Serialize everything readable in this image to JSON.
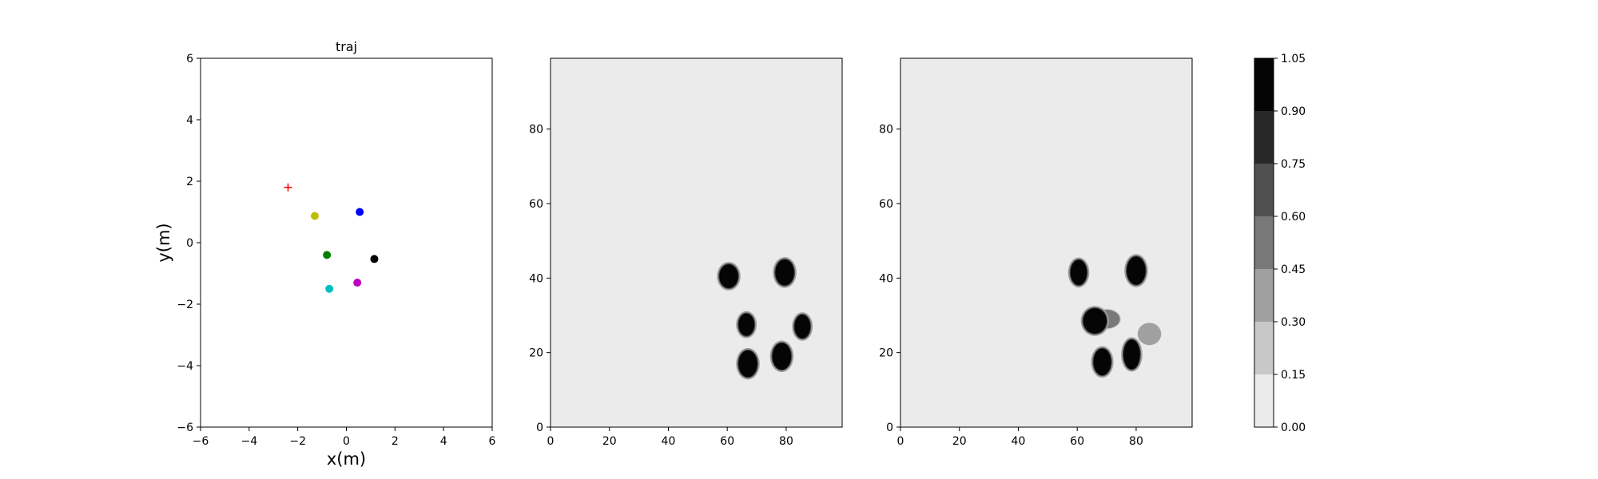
{
  "chart_data": [
    {
      "type": "scatter",
      "title": "traj",
      "xlabel": "x(m)",
      "ylabel": "y(m)",
      "xlim": [
        -6,
        6
      ],
      "ylim": [
        -6,
        6
      ],
      "xticks": [
        "−6",
        "−4",
        "−2",
        "0",
        "2",
        "4",
        "6"
      ],
      "yticks": [
        "−6",
        "−4",
        "−2",
        "0",
        "2",
        "4",
        "6"
      ],
      "xtick_values": [
        -6,
        -4,
        -2,
        0,
        2,
        4,
        6
      ],
      "ytick_values": [
        -6,
        -4,
        -2,
        0,
        2,
        4,
        6
      ],
      "target": {
        "x": -2.4,
        "y": 1.8,
        "marker": "+",
        "color": "#ff0000"
      },
      "points": [
        {
          "x": -1.3,
          "y": 0.87,
          "color": "#bfbf00"
        },
        {
          "x": 0.55,
          "y": 1.0,
          "color": "#0000ff"
        },
        {
          "x": -0.8,
          "y": -0.4,
          "color": "#008000"
        },
        {
          "x": 1.15,
          "y": -0.53,
          "color": "#000000"
        },
        {
          "x": 0.45,
          "y": -1.3,
          "color": "#bf00bf"
        },
        {
          "x": -0.7,
          "y": -1.5,
          "color": "#00bfbf"
        }
      ],
      "grid": false
    },
    {
      "type": "heatmap",
      "xlim": [
        0,
        99
      ],
      "ylim": [
        0,
        99
      ],
      "xticks": [
        "0",
        "20",
        "40",
        "60",
        "80"
      ],
      "yticks": [
        "0",
        "20",
        "40",
        "60",
        "80"
      ],
      "xtick_values": [
        0,
        20,
        40,
        60,
        80
      ],
      "ytick_values": [
        0,
        20,
        40,
        60,
        80
      ],
      "background": "#ebebeb",
      "blobs": [
        {
          "x": 60.5,
          "y": 40.5,
          "rx": 3.2,
          "ry": 3.2,
          "level": 1.0
        },
        {
          "x": 79.5,
          "y": 41.5,
          "rx": 3.2,
          "ry": 3.5,
          "level": 1.0
        },
        {
          "x": 66.5,
          "y": 27.5,
          "rx": 2.7,
          "ry": 3.0,
          "level": 1.0
        },
        {
          "x": 85.5,
          "y": 27.0,
          "rx": 2.7,
          "ry": 3.2,
          "level": 1.0
        },
        {
          "x": 67.0,
          "y": 17.0,
          "rx": 3.2,
          "ry": 3.6,
          "level": 1.0
        },
        {
          "x": 78.5,
          "y": 19.0,
          "rx": 3.2,
          "ry": 3.6,
          "level": 1.0
        }
      ]
    },
    {
      "type": "heatmap",
      "xlim": [
        0,
        99
      ],
      "ylim": [
        0,
        99
      ],
      "xticks": [
        "0",
        "20",
        "40",
        "60",
        "80"
      ],
      "yticks": [
        "0",
        "20",
        "40",
        "60",
        "80"
      ],
      "xtick_values": [
        0,
        20,
        40,
        60,
        80
      ],
      "ytick_values": [
        0,
        20,
        40,
        60,
        80
      ],
      "background": "#ebebeb",
      "blobs": [
        {
          "x": 60.5,
          "y": 41.5,
          "rx": 2.8,
          "ry": 3.4,
          "level": 1.0
        },
        {
          "x": 80.0,
          "y": 42.0,
          "rx": 3.2,
          "ry": 3.8,
          "level": 1.0
        },
        {
          "x": 66.0,
          "y": 28.5,
          "rx": 4.0,
          "ry": 3.4,
          "level": 1.0
        },
        {
          "x": 68.5,
          "y": 17.5,
          "rx": 3.0,
          "ry": 3.6,
          "level": 1.0
        },
        {
          "x": 78.5,
          "y": 19.5,
          "rx": 2.8,
          "ry": 4.0,
          "level": 1.0
        },
        {
          "x": 70.0,
          "y": 29.0,
          "rx": 4.5,
          "ry": 2.5,
          "level": 0.45
        },
        {
          "x": 84.5,
          "y": 25.0,
          "rx": 4.0,
          "ry": 3.0,
          "level": 0.3
        }
      ]
    },
    {
      "type": "colorbar",
      "ticks": [
        "0.00",
        "0.15",
        "0.30",
        "0.45",
        "0.60",
        "0.75",
        "0.90",
        "1.05"
      ],
      "tick_values": [
        0.0,
        0.15,
        0.3,
        0.45,
        0.6,
        0.75,
        0.9,
        1.05
      ],
      "colors": [
        "#ebebeb",
        "#c8c8c8",
        "#a0a0a0",
        "#787878",
        "#505050",
        "#282828",
        "#050505"
      ]
    }
  ]
}
